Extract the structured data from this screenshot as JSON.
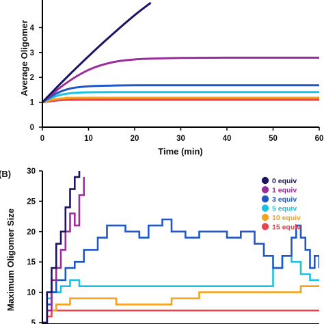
{
  "chart_data": [
    {
      "type": "line",
      "panel_label": "",
      "xlabel": "Time (min)",
      "ylabel": "Average Oligomer",
      "xlim": [
        0,
        60
      ],
      "ylim": [
        0,
        5
      ],
      "xticks": [
        "0",
        "10",
        "20",
        "30",
        "40",
        "50",
        "60"
      ],
      "yticks": [
        "0",
        "1",
        "2",
        "3",
        "4"
      ],
      "grid": false,
      "series": [
        {
          "color": "#1b1464",
          "x": [
            0,
            5,
            10,
            15,
            20,
            23.5
          ],
          "y": [
            1.0,
            1.95,
            2.85,
            3.7,
            4.5,
            5.0
          ]
        },
        {
          "color": "#9b2d9b",
          "x": [
            0,
            5,
            10,
            15,
            20,
            25,
            30,
            40,
            50,
            60
          ],
          "y": [
            1.0,
            1.75,
            2.3,
            2.6,
            2.72,
            2.76,
            2.78,
            2.79,
            2.79,
            2.79
          ]
        },
        {
          "color": "#1f57c9",
          "x": [
            0,
            3,
            6,
            10,
            15,
            20,
            30,
            60
          ],
          "y": [
            1.0,
            1.35,
            1.55,
            1.64,
            1.67,
            1.68,
            1.68,
            1.68
          ]
        },
        {
          "color": "#19c3e3",
          "x": [
            0,
            3,
            6,
            10,
            15,
            30,
            60
          ],
          "y": [
            1.0,
            1.25,
            1.36,
            1.4,
            1.41,
            1.41,
            1.41
          ]
        },
        {
          "color": "#f5a21e",
          "x": [
            0,
            3,
            6,
            10,
            60
          ],
          "y": [
            1.0,
            1.13,
            1.17,
            1.18,
            1.18
          ]
        },
        {
          "color": "#e8434f",
          "x": [
            0,
            3,
            6,
            10,
            60
          ],
          "y": [
            1.0,
            1.07,
            1.1,
            1.1,
            1.1
          ]
        }
      ]
    },
    {
      "type": "line",
      "panel_label": "(B)",
      "xlabel": "",
      "ylabel": "Maximum Oligomer Size",
      "xlim": [
        0,
        60
      ],
      "ylim": [
        5,
        30
      ],
      "yticks": [
        "5",
        "10",
        "15",
        "20",
        "25",
        "30"
      ],
      "grid": false,
      "legend_position": "top-right",
      "series": [
        {
          "name": "0 equiv",
          "color": "#1b1464",
          "x": [
            0,
            1,
            2,
            3,
            4,
            5,
            6,
            7,
            8
          ],
          "y": [
            5,
            10,
            14,
            18,
            20,
            24,
            27,
            29,
            30
          ]
        },
        {
          "name": "1 equiv",
          "color": "#9b2d9b",
          "x": [
            0,
            1,
            2,
            3,
            4,
            5,
            6,
            7,
            8,
            9
          ],
          "y": [
            5,
            7,
            12,
            14,
            17,
            20,
            23,
            21,
            26,
            29
          ]
        },
        {
          "name": "3 equiv",
          "color": "#1f57c9",
          "x": [
            0,
            1,
            2,
            3,
            5,
            7,
            9,
            12,
            14,
            16,
            18,
            21,
            23,
            26,
            28,
            31,
            34,
            37,
            40,
            43,
            46,
            48,
            50,
            52,
            54,
            55,
            56,
            57,
            58,
            59,
            60
          ],
          "y": [
            5,
            8,
            10,
            12,
            14,
            15,
            17,
            19,
            21,
            21,
            20,
            19,
            21,
            22,
            20,
            19,
            20,
            20,
            19,
            20,
            18,
            16,
            14,
            16,
            19,
            21,
            19,
            17,
            14,
            16,
            14
          ]
        },
        {
          "name": "5 equiv",
          "color": "#19c3e3",
          "x": [
            0,
            1,
            2,
            4,
            6,
            8,
            10,
            14,
            20,
            26,
            32,
            38,
            44,
            48,
            50,
            52,
            54,
            56,
            58,
            60
          ],
          "y": [
            5,
            9,
            10,
            11,
            12,
            11,
            11,
            11,
            11,
            11,
            11,
            11,
            11,
            11,
            14,
            16,
            15,
            13,
            12,
            12
          ]
        },
        {
          "name": "10 equiv",
          "color": "#f5a21e",
          "x": [
            0,
            1,
            3,
            6,
            10,
            16,
            22,
            28,
            34,
            40,
            46,
            52,
            56,
            60
          ],
          "y": [
            5,
            7,
            8,
            9,
            9,
            8,
            8,
            9,
            10,
            10,
            10,
            10,
            11,
            11
          ]
        },
        {
          "name": "15 equiv",
          "color": "#e8434f",
          "x": [
            0,
            1,
            2,
            5,
            10,
            20,
            30,
            40,
            50,
            60
          ],
          "y": [
            5,
            6,
            7,
            7,
            7,
            7,
            7,
            7,
            7,
            7
          ]
        }
      ]
    }
  ]
}
